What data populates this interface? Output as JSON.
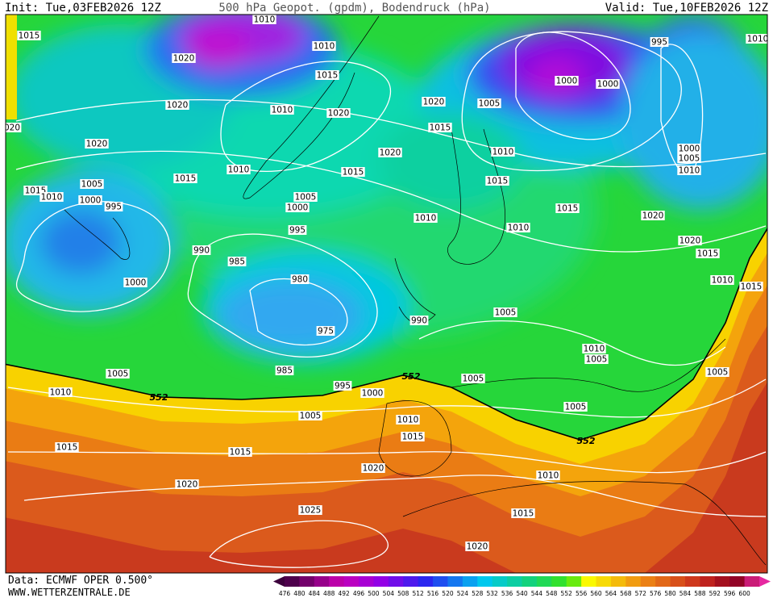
{
  "header": {
    "init": "Init: Tue,03FEB2026 12Z",
    "title": "500 hPa Geopot. (gpdm), Bodendruck (hPa)",
    "valid": "Valid: Tue,10FEB2026 12Z"
  },
  "map": {
    "isobar_labels": [
      "1010",
      "1015",
      "1020",
      "1010",
      "1015",
      "995",
      "1010",
      "1000",
      "1000",
      "1020",
      "1010",
      "1020",
      "1020",
      "1005",
      "1015",
      "020",
      "1020",
      "1020",
      "1010",
      "1000",
      "1005",
      "1010",
      "1015",
      "1010",
      "1015",
      "1015",
      "1015",
      "1010",
      "1005",
      "1000",
      "995",
      "1005",
      "1000",
      "1015",
      "1010",
      "1020",
      "995",
      "1010",
      "1020",
      "1015",
      "990",
      "985",
      "1000",
      "980",
      "1010",
      "1015",
      "1005",
      "975",
      "990",
      "1010",
      "1005",
      "985",
      "1005",
      "1005",
      "1005",
      "995",
      "1000",
      "1010",
      "1005",
      "1005",
      "1010",
      "1015",
      "1015",
      "1015",
      "1020",
      "1010",
      "1020",
      "1015",
      "1025",
      "1020"
    ],
    "height_labels": [
      "552",
      "552",
      "552"
    ]
  },
  "footer": {
    "source": "Data: ECMWF OPER 0.500°",
    "site": "WWW.WETTERZENTRALE.DE"
  },
  "colorbar": {
    "labels": [
      476,
      480,
      484,
      488,
      492,
      496,
      500,
      504,
      508,
      512,
      516,
      520,
      524,
      528,
      532,
      536,
      540,
      544,
      548,
      552,
      556,
      560,
      564,
      568,
      572,
      576,
      580,
      584,
      588,
      592,
      596,
      600
    ]
  }
}
